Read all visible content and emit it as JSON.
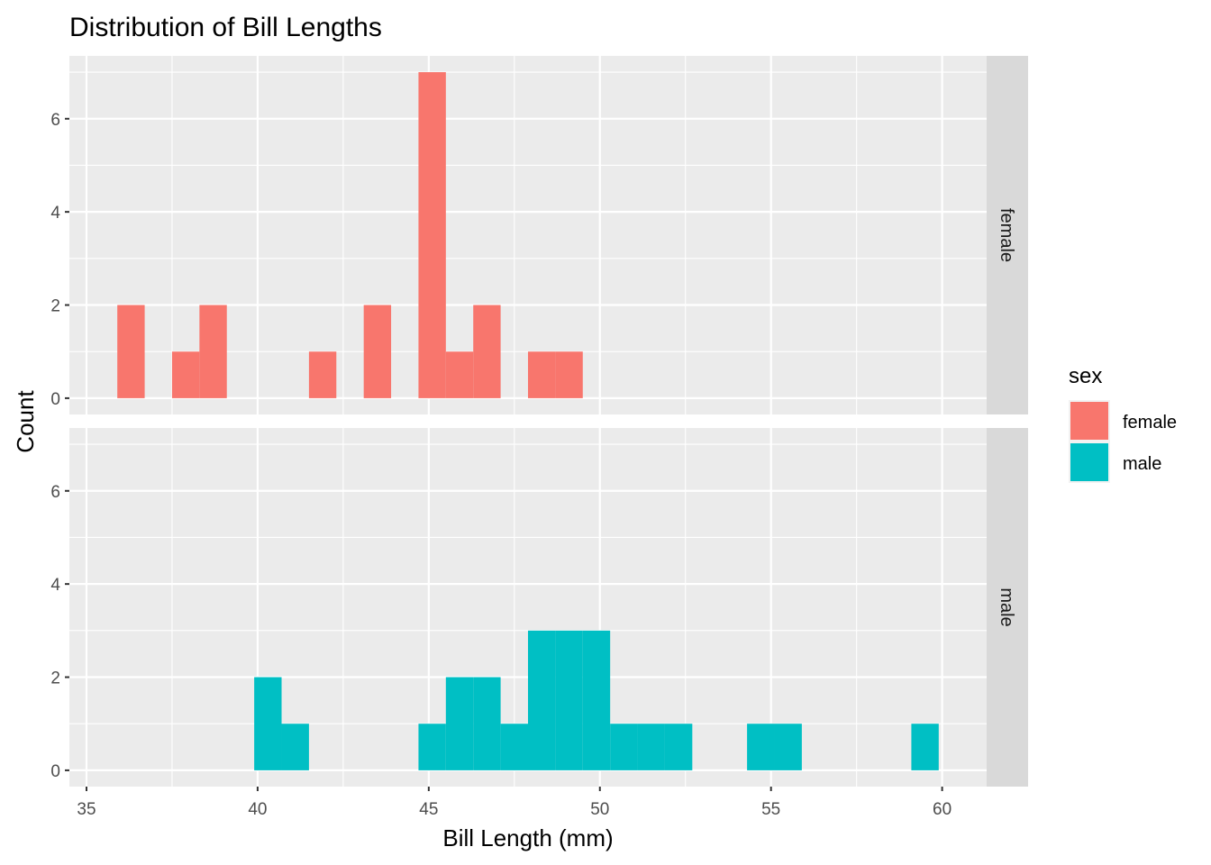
{
  "chart_data": {
    "type": "bar",
    "subtype": "faceted-histogram",
    "title": "Distribution of Bill Lengths",
    "xlabel": "Bill Length (mm)",
    "ylabel": "Count",
    "xlim": [
      34.5,
      61.3
    ],
    "ylim": [
      -0.35,
      7.35
    ],
    "x_ticks": [
      35,
      40,
      45,
      50,
      55,
      60
    ],
    "y_ticks": [
      0,
      2,
      4,
      6
    ],
    "bin_width": 0.8,
    "grid": true,
    "legend": {
      "title": "sex",
      "position": "right",
      "entries": [
        {
          "label": "female",
          "color": "#F8766D"
        },
        {
          "label": "male",
          "color": "#00BFC4"
        }
      ]
    },
    "facets": [
      {
        "strip": "female",
        "color": "#F8766D",
        "bins": [
          {
            "x": 36.3,
            "count": 2
          },
          {
            "x": 37.9,
            "count": 1
          },
          {
            "x": 38.7,
            "count": 2
          },
          {
            "x": 41.9,
            "count": 1
          },
          {
            "x": 43.5,
            "count": 2
          },
          {
            "x": 45.1,
            "count": 7
          },
          {
            "x": 45.9,
            "count": 1
          },
          {
            "x": 46.7,
            "count": 2
          },
          {
            "x": 48.3,
            "count": 1
          },
          {
            "x": 49.1,
            "count": 1
          }
        ]
      },
      {
        "strip": "male",
        "color": "#00BFC4",
        "bins": [
          {
            "x": 40.3,
            "count": 2
          },
          {
            "x": 41.1,
            "count": 1
          },
          {
            "x": 45.1,
            "count": 1
          },
          {
            "x": 45.9,
            "count": 2
          },
          {
            "x": 46.7,
            "count": 2
          },
          {
            "x": 47.5,
            "count": 1
          },
          {
            "x": 48.3,
            "count": 3
          },
          {
            "x": 49.1,
            "count": 3
          },
          {
            "x": 49.9,
            "count": 3
          },
          {
            "x": 50.7,
            "count": 1
          },
          {
            "x": 51.5,
            "count": 1
          },
          {
            "x": 52.3,
            "count": 1
          },
          {
            "x": 54.7,
            "count": 1
          },
          {
            "x": 55.5,
            "count": 1
          },
          {
            "x": 59.5,
            "count": 1
          }
        ]
      }
    ],
    "colors": {
      "panel_bg": "#EBEBEB",
      "grid_line": "#FFFFFF",
      "strip_bg": "#D9D9D9"
    }
  }
}
